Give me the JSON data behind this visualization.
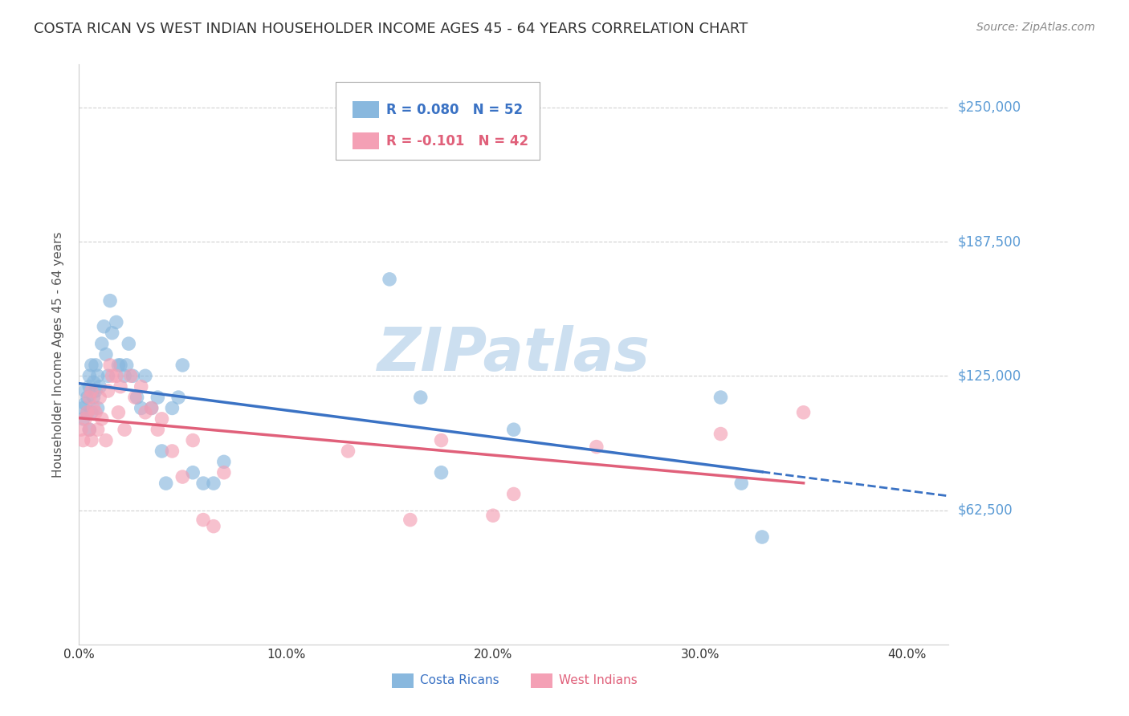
{
  "title": "COSTA RICAN VS WEST INDIAN HOUSEHOLDER INCOME AGES 45 - 64 YEARS CORRELATION CHART",
  "source": "Source: ZipAtlas.com",
  "ylabel": "Householder Income Ages 45 - 64 years",
  "ytick_labels": [
    "$62,500",
    "$125,000",
    "$187,500",
    "$250,000"
  ],
  "ytick_vals": [
    62500,
    125000,
    187500,
    250000
  ],
  "ylim": [
    0,
    270000
  ],
  "xlim": [
    0.0,
    0.42
  ],
  "xtick_vals": [
    0.0,
    0.1,
    0.2,
    0.3,
    0.4
  ],
  "xtick_labels": [
    "0.0%",
    "10.0%",
    "20.0%",
    "30.0%",
    "40.0%"
  ],
  "background_color": "#ffffff",
  "grid_color": "#cccccc",
  "title_color": "#333333",
  "title_fontsize": 13,
  "source_color": "#888888",
  "source_fontsize": 10,
  "ylabel_color": "#555555",
  "ylabel_fontsize": 11,
  "ytick_color": "#5b9bd5",
  "ytick_fontsize": 12,
  "xtick_color": "#333333",
  "xtick_fontsize": 11,
  "costa_rican_color": "#89b8de",
  "west_indian_color": "#f4a0b5",
  "costa_rican_line_color": "#3a72c4",
  "west_indian_line_color": "#e0607a",
  "legend_text_blue": "#3a72c4",
  "legend_text_pink": "#e0607a",
  "watermark_color": "#ccdff0",
  "R_costa": 0.08,
  "N_costa": 52,
  "R_west": -0.101,
  "N_west": 42,
  "costa_rican_x": [
    0.002,
    0.002,
    0.003,
    0.003,
    0.004,
    0.004,
    0.005,
    0.005,
    0.005,
    0.006,
    0.006,
    0.007,
    0.007,
    0.008,
    0.008,
    0.009,
    0.009,
    0.01,
    0.011,
    0.012,
    0.013,
    0.014,
    0.015,
    0.016,
    0.018,
    0.019,
    0.02,
    0.022,
    0.023,
    0.024,
    0.026,
    0.028,
    0.03,
    0.032,
    0.035,
    0.038,
    0.04,
    0.042,
    0.045,
    0.048,
    0.05,
    0.055,
    0.06,
    0.065,
    0.07,
    0.15,
    0.165,
    0.175,
    0.21,
    0.31,
    0.32,
    0.33
  ],
  "costa_rican_y": [
    110000,
    105000,
    118000,
    112000,
    108000,
    115000,
    120000,
    125000,
    100000,
    130000,
    108000,
    115000,
    122000,
    118000,
    130000,
    125000,
    110000,
    120000,
    140000,
    148000,
    135000,
    125000,
    160000,
    145000,
    150000,
    130000,
    130000,
    125000,
    130000,
    140000,
    125000,
    115000,
    110000,
    125000,
    110000,
    115000,
    90000,
    75000,
    110000,
    115000,
    130000,
    80000,
    75000,
    75000,
    85000,
    170000,
    115000,
    80000,
    100000,
    115000,
    75000,
    50000
  ],
  "west_indian_x": [
    0.001,
    0.002,
    0.003,
    0.004,
    0.005,
    0.005,
    0.006,
    0.006,
    0.007,
    0.008,
    0.009,
    0.01,
    0.011,
    0.013,
    0.014,
    0.015,
    0.016,
    0.018,
    0.019,
    0.02,
    0.022,
    0.025,
    0.027,
    0.03,
    0.032,
    0.035,
    0.038,
    0.04,
    0.045,
    0.05,
    0.055,
    0.06,
    0.065,
    0.07,
    0.13,
    0.16,
    0.175,
    0.2,
    0.21,
    0.25,
    0.31,
    0.35
  ],
  "west_indian_y": [
    100000,
    95000,
    105000,
    108000,
    115000,
    100000,
    118000,
    95000,
    110000,
    108000,
    100000,
    115000,
    105000,
    95000,
    118000,
    130000,
    125000,
    125000,
    108000,
    120000,
    100000,
    125000,
    115000,
    120000,
    108000,
    110000,
    100000,
    105000,
    90000,
    78000,
    95000,
    58000,
    55000,
    80000,
    90000,
    58000,
    95000,
    60000,
    70000,
    92000,
    98000,
    108000
  ]
}
